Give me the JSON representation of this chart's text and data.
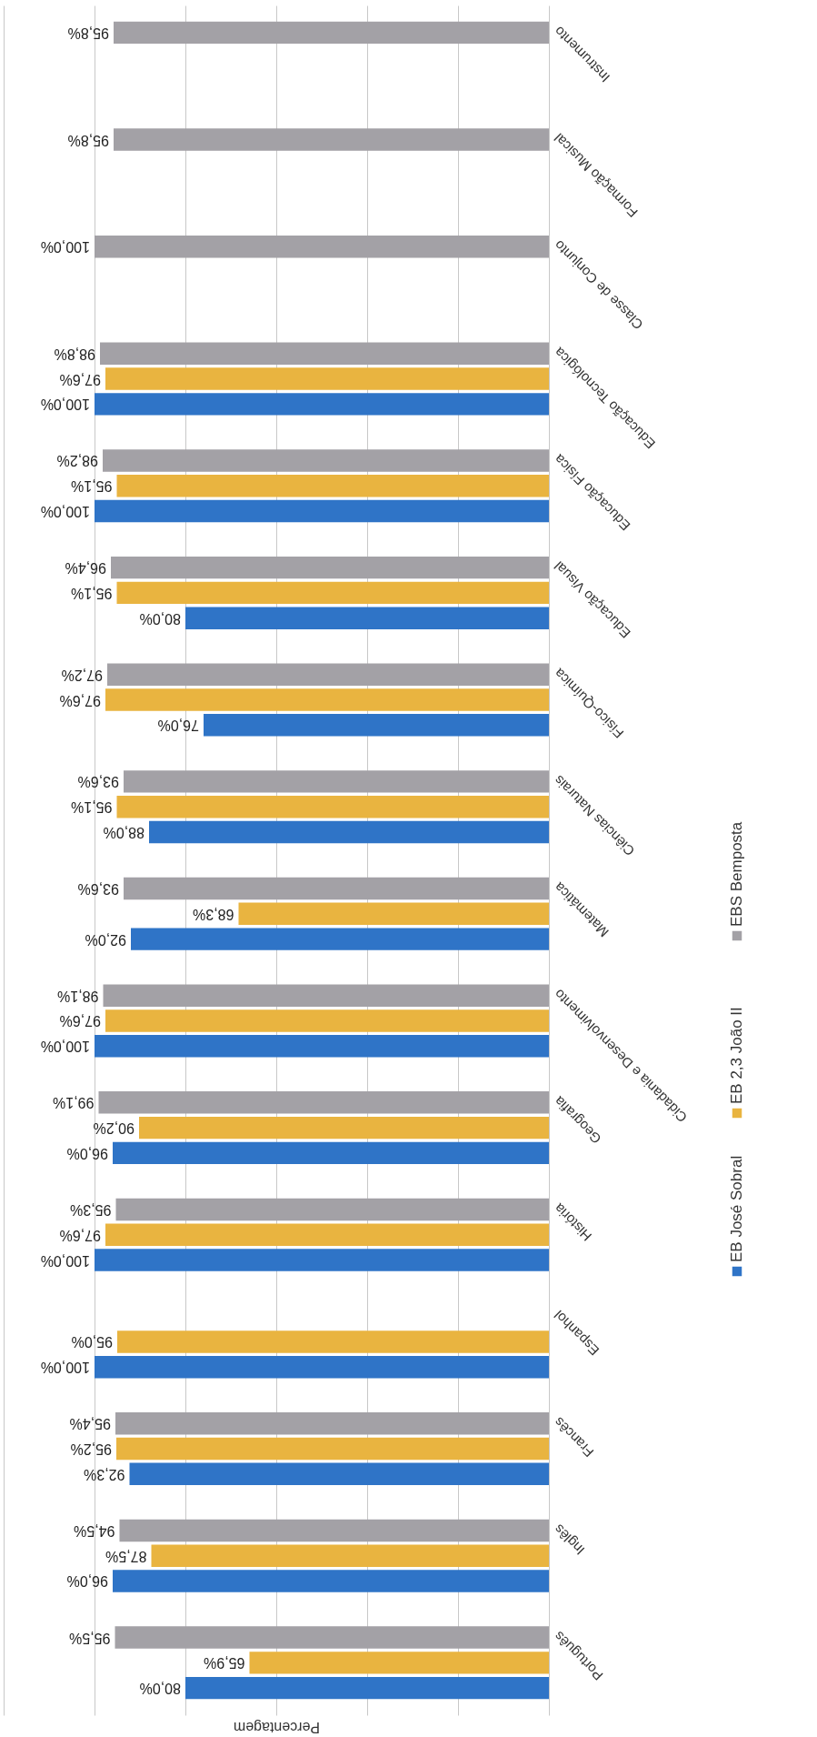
{
  "chart_data": {
    "type": "bar",
    "orientation": "horizontal",
    "xlabel": "Percentagem",
    "categories": [
      "Instrumento",
      "Formação Musical",
      "Classe de Conjunto",
      "Educação Tecnológica",
      "Educação Física",
      "Educação Visual",
      "Físico-Química",
      "Ciências Naturais",
      "Matemática",
      "Cidadania e Desenvolvimento",
      "Geografia",
      "História",
      "Espanhol",
      "Francês",
      "Inglês",
      "Português"
    ],
    "series": [
      {
        "name": "EB José Sobral",
        "color": "#2f74c7",
        "values": [
          null,
          null,
          null,
          100.0,
          100.0,
          80.0,
          76.0,
          88.0,
          92.0,
          100.0,
          96.0,
          100.0,
          100.0,
          92.3,
          96.0,
          80.0
        ],
        "value_labels": [
          null,
          null,
          null,
          "100,0%",
          "100,0%",
          "80,0%",
          "76,0%",
          "88,0%",
          "92,0%",
          "100,0%",
          "96,0%",
          "100,0%",
          "100,0%",
          "92,3%",
          "96,0%",
          "80,0%"
        ]
      },
      {
        "name": "EB 2,3 João II",
        "color": "#e9b440",
        "values": [
          null,
          null,
          null,
          97.6,
          95.1,
          95.1,
          97.6,
          95.1,
          68.3,
          97.6,
          90.2,
          97.6,
          95.0,
          95.2,
          87.5,
          65.9
        ],
        "value_labels": [
          null,
          null,
          null,
          "97,6%",
          "95,1%",
          "95,1%",
          "97,6%",
          "95,1%",
          "68,3%",
          "97,6%",
          "90,2%",
          "97,6%",
          "95,0%",
          "95,2%",
          "87,5%",
          "65,9%"
        ]
      },
      {
        "name": "EBS Bemposta",
        "color": "#a3a1a6",
        "values": [
          95.8,
          95.8,
          100.0,
          98.8,
          98.2,
          96.4,
          97.2,
          93.6,
          93.6,
          98.1,
          99.1,
          95.3,
          null,
          95.4,
          94.5,
          95.5
        ],
        "value_labels": [
          "95,8%",
          "95,8%",
          "100,0%",
          "98,8%",
          "98,2%",
          "96,4%",
          "97,2%",
          "93,6%",
          "93,6%",
          "98,1%",
          "99,1%",
          "95,3%",
          null,
          "95,4%",
          "94,5%",
          "95,5%"
        ]
      }
    ],
    "xlim": [
      120,
      0
    ],
    "xticks": [
      {
        "value": 0,
        "label": null
      },
      {
        "value": 20,
        "label": null
      },
      {
        "value": 40,
        "label": null
      },
      {
        "value": 60,
        "label": null
      },
      {
        "value": 80,
        "label": null
      },
      {
        "value": 100,
        "label": null
      },
      {
        "value": 120,
        "label": null
      }
    ],
    "grid": "x",
    "legend": "right"
  }
}
